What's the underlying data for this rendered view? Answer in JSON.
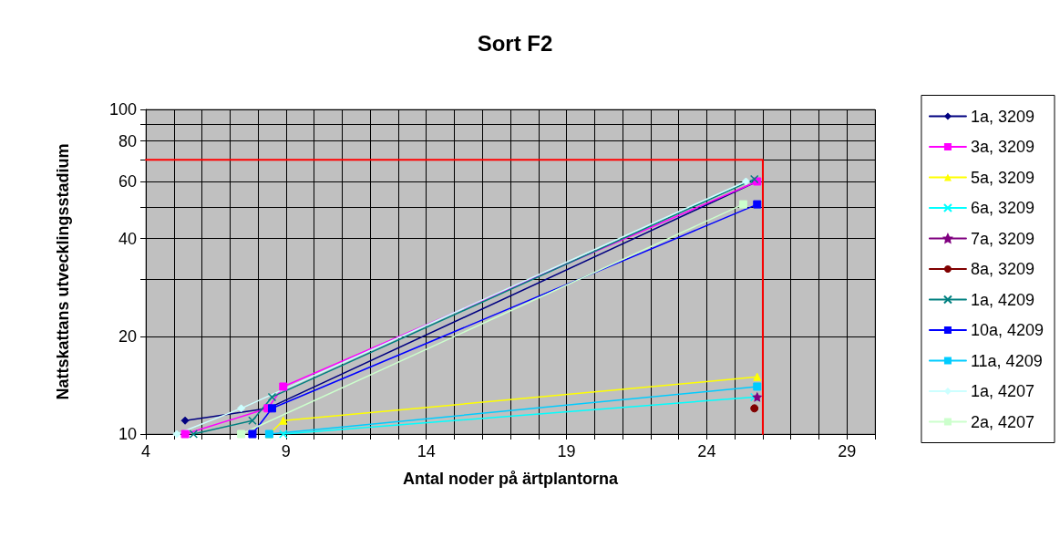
{
  "chart_data": {
    "type": "line",
    "title": "Sort F2",
    "xlabel": "Antal noder på ärtplantorna",
    "ylabel": "Nattskattans utvecklingsstadium",
    "log": "y",
    "grid": true,
    "legend": "right",
    "line_style": "solid",
    "xlim": [
      4,
      30
    ],
    "xticks": [
      4,
      {
        "value": 5,
        "label": null
      },
      {
        "value": 6,
        "label": null
      },
      {
        "value": 7,
        "label": null
      },
      {
        "value": 8,
        "label": null
      },
      9,
      {
        "value": 10,
        "label": null
      },
      {
        "value": 11,
        "label": null
      },
      {
        "value": 12,
        "label": null
      },
      {
        "value": 13,
        "label": null
      },
      14,
      {
        "value": 15,
        "label": null
      },
      {
        "value": 16,
        "label": null
      },
      {
        "value": 17,
        "label": null
      },
      {
        "value": 18,
        "label": null
      },
      19,
      {
        "value": 20,
        "label": null
      },
      {
        "value": 21,
        "label": null
      },
      {
        "value": 22,
        "label": null
      },
      {
        "value": 23,
        "label": null
      },
      24,
      {
        "value": 25,
        "label": null
      },
      {
        "value": 26,
        "label": null
      },
      {
        "value": 27,
        "label": null
      },
      {
        "value": 28,
        "label": null
      },
      29,
      {
        "value": 30,
        "label": null
      }
    ],
    "ylim": [
      10,
      100
    ],
    "yticks": [
      10,
      20,
      {
        "value": 30,
        "label": null
      },
      40,
      {
        "value": 50,
        "label": null
      },
      60,
      {
        "value": 70,
        "label": null
      },
      80,
      {
        "value": 90,
        "label": null
      },
      100
    ],
    "series": [
      {
        "name": "1a, 3209",
        "color": "#000080",
        "marker": "diamond",
        "x": [
          5.4,
          8.35,
          25.8
        ],
        "values": [
          11,
          12,
          60
        ]
      },
      {
        "name": "3a, 3209",
        "color": "#ff00ff",
        "marker": "square",
        "x": [
          5.4,
          8.35,
          8.9,
          25.8
        ],
        "values": [
          10,
          12,
          14,
          60
        ]
      },
      {
        "name": "5a, 3209",
        "color": "#ffff00",
        "marker": "triangle",
        "x": [
          8.4,
          8.9,
          25.8
        ],
        "values": [
          10,
          11,
          15
        ]
      },
      {
        "name": "6a, 3209",
        "color": "#00ffff",
        "marker": "cross",
        "x": [
          8.9,
          25.7
        ],
        "values": [
          10,
          13
        ]
      },
      {
        "name": "7a, 3209",
        "color": "#800080",
        "marker": "star",
        "x": [
          25.8
        ],
        "values": [
          13
        ]
      },
      {
        "name": "8a, 3209",
        "color": "#800000",
        "marker": "circle",
        "x": [
          25.7
        ],
        "values": [
          12
        ]
      },
      {
        "name": "1a, 4209",
        "color": "#008080",
        "marker": "cross",
        "x": [
          5.7,
          7.8,
          8.5,
          25.7
        ],
        "values": [
          10,
          11,
          13,
          61
        ]
      },
      {
        "name": "10a, 4209",
        "color": "#0000ff",
        "marker": "square",
        "x": [
          7.8,
          8.5,
          25.8
        ],
        "values": [
          10,
          12,
          51
        ]
      },
      {
        "name": "11a, 4209",
        "color": "#00ccff",
        "marker": "square",
        "x": [
          8.4,
          25.8
        ],
        "values": [
          10,
          14
        ]
      },
      {
        "name": "1a, 4207",
        "color": "#ccffff",
        "marker": "diamond",
        "x": [
          5.1,
          7.4,
          25.4
        ],
        "values": [
          10,
          12,
          60
        ]
      },
      {
        "name": "2a, 4207",
        "color": "#ccffcc",
        "marker": "square",
        "x": [
          7.4,
          25.3
        ],
        "values": [
          10,
          51
        ]
      },
      {
        "color": "#ff0000",
        "marker": "none",
        "x": [
          4,
          26,
          26
        ],
        "values": [
          70,
          70,
          10
        ]
      }
    ]
  }
}
